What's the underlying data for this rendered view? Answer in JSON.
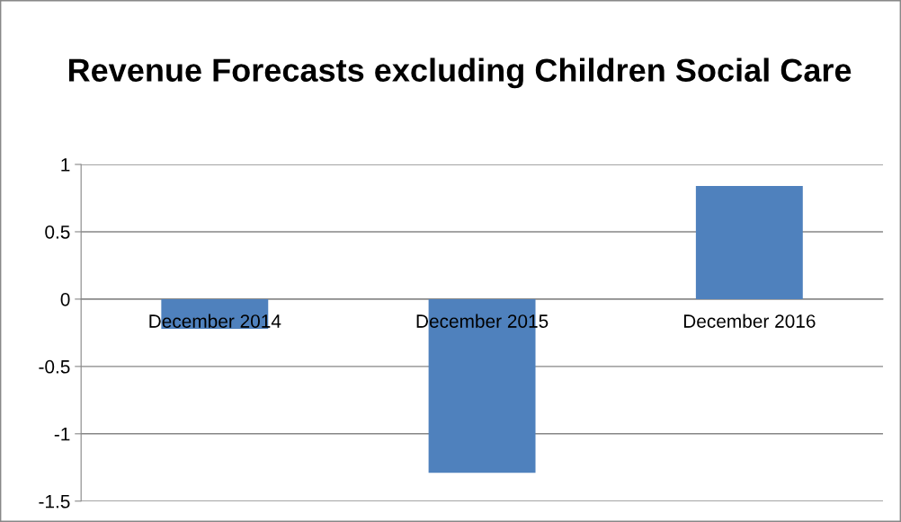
{
  "chart_data": {
    "type": "bar",
    "title": "Revenue Forecasts excluding Children Social Care",
    "categories": [
      "December 2014",
      "December 2015",
      "December 2016"
    ],
    "values": [
      -0.22,
      -1.29,
      0.84
    ],
    "color": "#4f81bd",
    "ylim": [
      -1.5,
      1
    ],
    "yticks": [
      -1.5,
      -1,
      -0.5,
      0,
      0.5,
      1
    ],
    "grid": "y"
  }
}
